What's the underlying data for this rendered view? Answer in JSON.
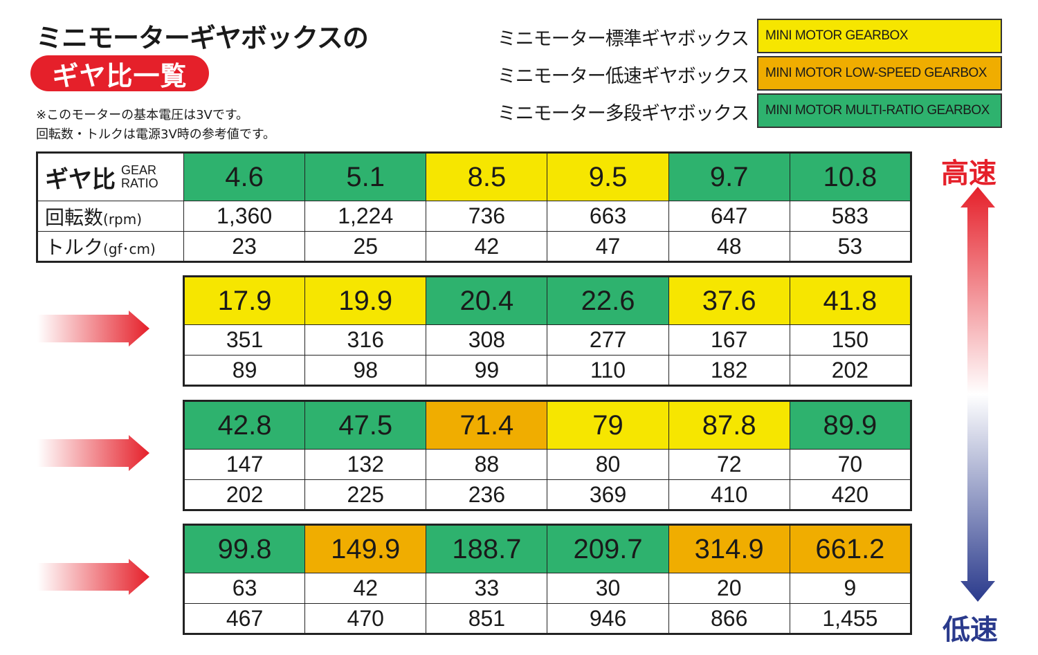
{
  "title": {
    "line1": "ミニモーターギヤボックスの",
    "line2": "ギヤ比一覧",
    "note1": "※このモーターの基本電圧は3Vです。",
    "note2": "回転数・トルクは電源3V時の参考値です。"
  },
  "legend": [
    {
      "label": "ミニモーター標準ギヤボックス",
      "name": "MINI MOTOR GEARBOX",
      "color": "#f6e600"
    },
    {
      "label": "ミニモーター低速ギヤボックス",
      "name": "MINI MOTOR LOW-SPEED GEARBOX",
      "color": "#f0ad00"
    },
    {
      "label": "ミニモーター多段ギヤボックス",
      "name": "MINI MOTOR MULTI-RATIO GEARBOX",
      "color": "#2eb26e"
    }
  ],
  "header": {
    "gear_jp": "ギヤ比",
    "gear_en1": "GEAR",
    "gear_en2": "RATIO",
    "rpm_jp": "回転数",
    "rpm_unit": "(rpm)",
    "torque_jp": "トルク",
    "torque_unit": "(gf･cm)"
  },
  "speed": {
    "high": "高速",
    "low": "低速"
  },
  "tables": [
    {
      "ratios": [
        "4.6",
        "5.1",
        "8.5",
        "9.5",
        "9.7",
        "10.8"
      ],
      "types": [
        "multi",
        "multi",
        "standard",
        "standard",
        "multi",
        "multi"
      ],
      "rpm": [
        "1,360",
        "1,224",
        "736",
        "663",
        "647",
        "583"
      ],
      "torque": [
        "23",
        "25",
        "42",
        "47",
        "48",
        "53"
      ]
    },
    {
      "ratios": [
        "17.9",
        "19.9",
        "20.4",
        "22.6",
        "37.6",
        "41.8"
      ],
      "types": [
        "standard",
        "standard",
        "multi",
        "multi",
        "standard",
        "standard"
      ],
      "rpm": [
        "351",
        "316",
        "308",
        "277",
        "167",
        "150"
      ],
      "torque": [
        "89",
        "98",
        "99",
        "110",
        "182",
        "202"
      ]
    },
    {
      "ratios": [
        "42.8",
        "47.5",
        "71.4",
        "79",
        "87.8",
        "89.9"
      ],
      "types": [
        "multi",
        "multi",
        "low",
        "standard",
        "standard",
        "multi"
      ],
      "rpm": [
        "147",
        "132",
        "88",
        "80",
        "72",
        "70"
      ],
      "torque": [
        "202",
        "225",
        "236",
        "369",
        "410",
        "420"
      ]
    },
    {
      "ratios": [
        "99.8",
        "149.9",
        "188.7",
        "209.7",
        "314.9",
        "661.2"
      ],
      "types": [
        "multi",
        "low",
        "multi",
        "multi",
        "low",
        "low"
      ],
      "rpm": [
        "63",
        "42",
        "33",
        "30",
        "20",
        "9"
      ],
      "torque": [
        "467",
        "470",
        "851",
        "946",
        "866",
        "1,455"
      ]
    }
  ]
}
